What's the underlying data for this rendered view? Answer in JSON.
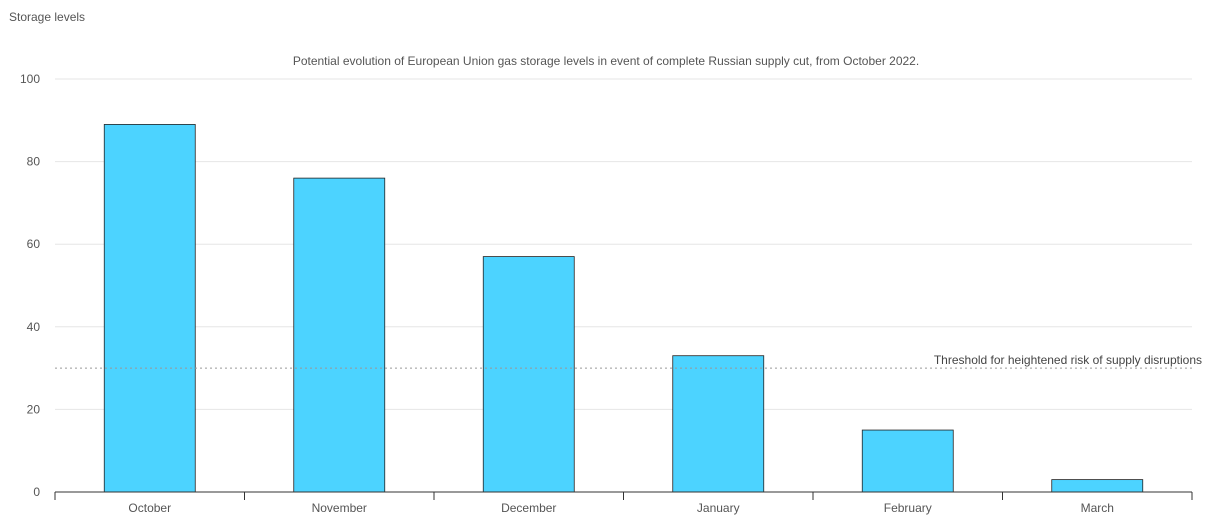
{
  "chart_data": {
    "type": "bar",
    "title": "Potential evolution of European Union gas storage levels in event of complete Russian supply cut, from October 2022.",
    "ylabel": "Storage levels",
    "xlabel": "",
    "categories": [
      "October",
      "November",
      "December",
      "January",
      "February",
      "March"
    ],
    "values": [
      89,
      76,
      57,
      33,
      15,
      3
    ],
    "ylim": [
      0,
      100
    ],
    "yticks": [
      0,
      20,
      40,
      60,
      80,
      100
    ],
    "grid": true,
    "threshold": {
      "value": 30,
      "label": "Threshold for heightened risk of supply disruptions"
    },
    "colors": {
      "bar": "#4cd3ff",
      "bar_edge": "#222222",
      "grid": "#e6e6e6",
      "threshold": "#999999"
    }
  }
}
